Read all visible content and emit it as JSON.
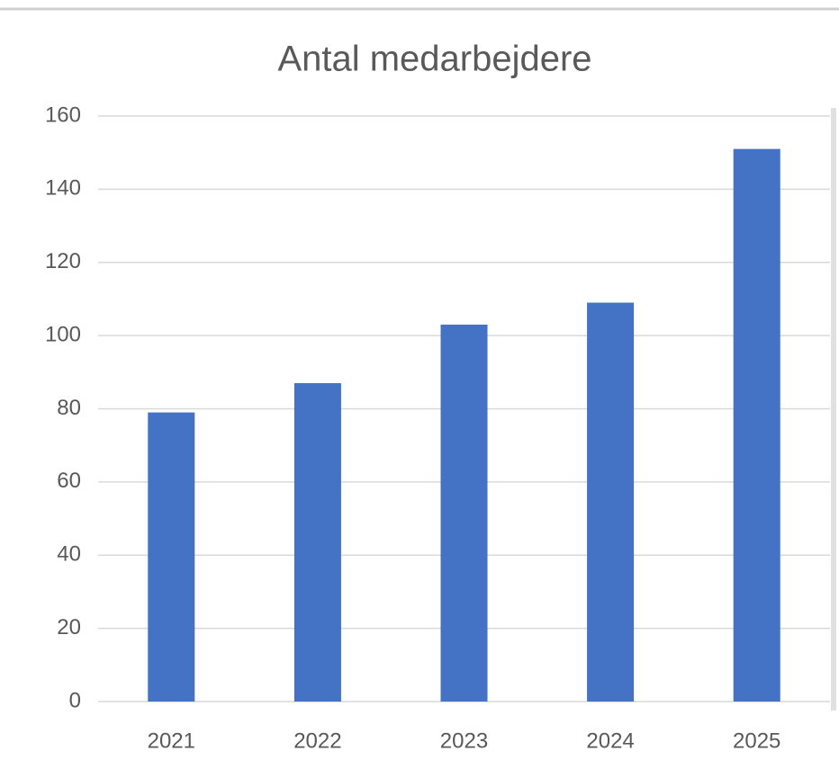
{
  "chart_data": {
    "type": "bar",
    "title": "Antal medarbejdere",
    "categories": [
      "2021",
      "2022",
      "2023",
      "2024",
      "2025"
    ],
    "values": [
      79,
      87,
      103,
      109,
      151
    ],
    "color": "#4472c4",
    "ylim": [
      0,
      160
    ],
    "yticks": [
      0,
      20,
      40,
      60,
      80,
      100,
      120,
      140,
      160
    ],
    "grid": true
  }
}
